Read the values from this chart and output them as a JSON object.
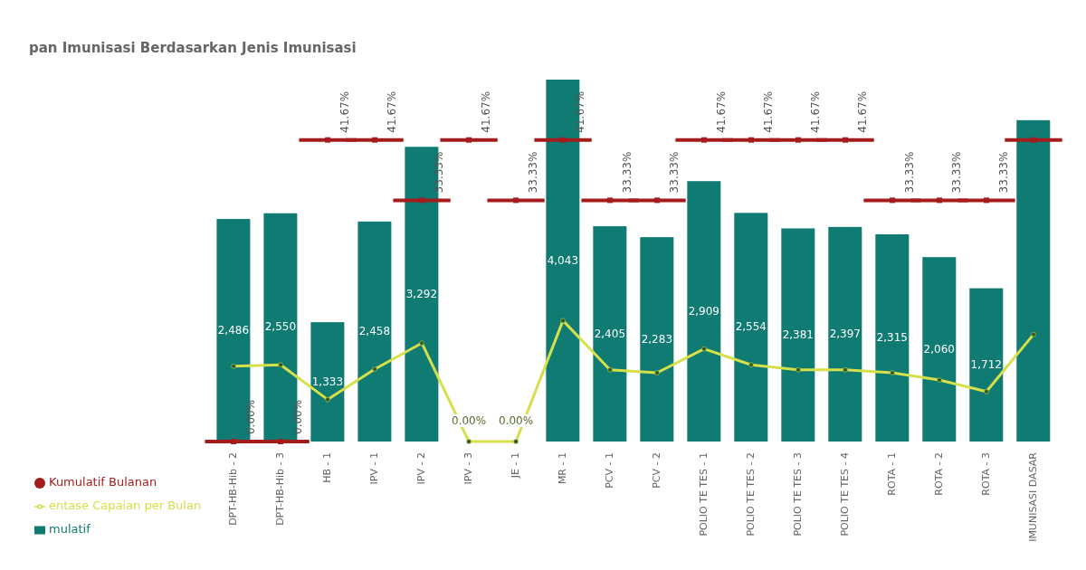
{
  "chart_data": {
    "type": "bar",
    "title": "pan Imunisasi Berdasarkan Jenis Imunisasi",
    "categories": [
      "DPT-HB-Hib - 2",
      "DPT-HB-Hib - 3",
      "HB - 1",
      "IPV - 1",
      "IPV - 2",
      "IPV - 3",
      "JE - 1",
      "MR - 1",
      "PCV - 1",
      "PCV - 2",
      "POLIO TE TES - 1",
      "POLIO TE TES - 2",
      "POLIO TE TES - 3",
      "POLIO TE TES - 4",
      "ROTA - 1",
      "ROTA - 2",
      "ROTA - 3",
      "IMUNISASI DASAR"
    ],
    "series": [
      {
        "name": "Kumulatif Bulanan",
        "type": "scatter",
        "axis": "y2",
        "color": "#a51c1c",
        "marker": "square",
        "values": [
          0,
          0,
          41.67,
          41.67,
          33.33,
          41.67,
          33.33,
          41.67,
          33.33,
          33.33,
          41.67,
          41.67,
          41.67,
          41.67,
          33.33,
          33.33,
          33.33,
          41.67
        ],
        "value_labels": [
          "0.00%",
          "0.00%",
          "41.67%",
          "41.67%",
          "33.33%",
          "41.67%",
          "33.33%",
          "41.67%",
          "33.33%",
          "33.33%",
          "41.67%",
          "41.67%",
          "41.67%",
          "41.67%",
          "33.33%",
          "33.33%",
          "33.33%",
          null
        ]
      },
      {
        "name": "mulatif",
        "type": "bar",
        "color": "#0f7b73",
        "values": [
          2486,
          2550,
          1333,
          2458,
          3292,
          0,
          0,
          4043,
          2405,
          2283,
          2909,
          2554,
          2381,
          2397,
          2315,
          2060,
          1712,
          3590
        ],
        "value_labels": [
          "2,486",
          "2,550",
          "1,333",
          "2,458",
          "3,292",
          null,
          null,
          "4,043",
          "2,405",
          "2,283",
          "2,909",
          "2,554",
          "2,381",
          "2,397",
          "2,315",
          "2,060",
          "1,712",
          null
        ]
      },
      {
        "name": "entase Capaian per Bulan",
        "type": "line",
        "axis": "y2",
        "color": "#d6e04a",
        "marker": "circle",
        "values": [
          10.4,
          10.6,
          5.8,
          10.0,
          13.6,
          0,
          0,
          16.7,
          9.9,
          9.5,
          12.8,
          10.6,
          9.9,
          9.9,
          9.5,
          8.5,
          6.9,
          14.8
        ],
        "value_labels": [
          null,
          null,
          null,
          null,
          null,
          "0.00%",
          "0.00%",
          null,
          null,
          null,
          null,
          null,
          null,
          null,
          null,
          null,
          null,
          null
        ]
      }
    ],
    "legend": "bottom left"
  }
}
